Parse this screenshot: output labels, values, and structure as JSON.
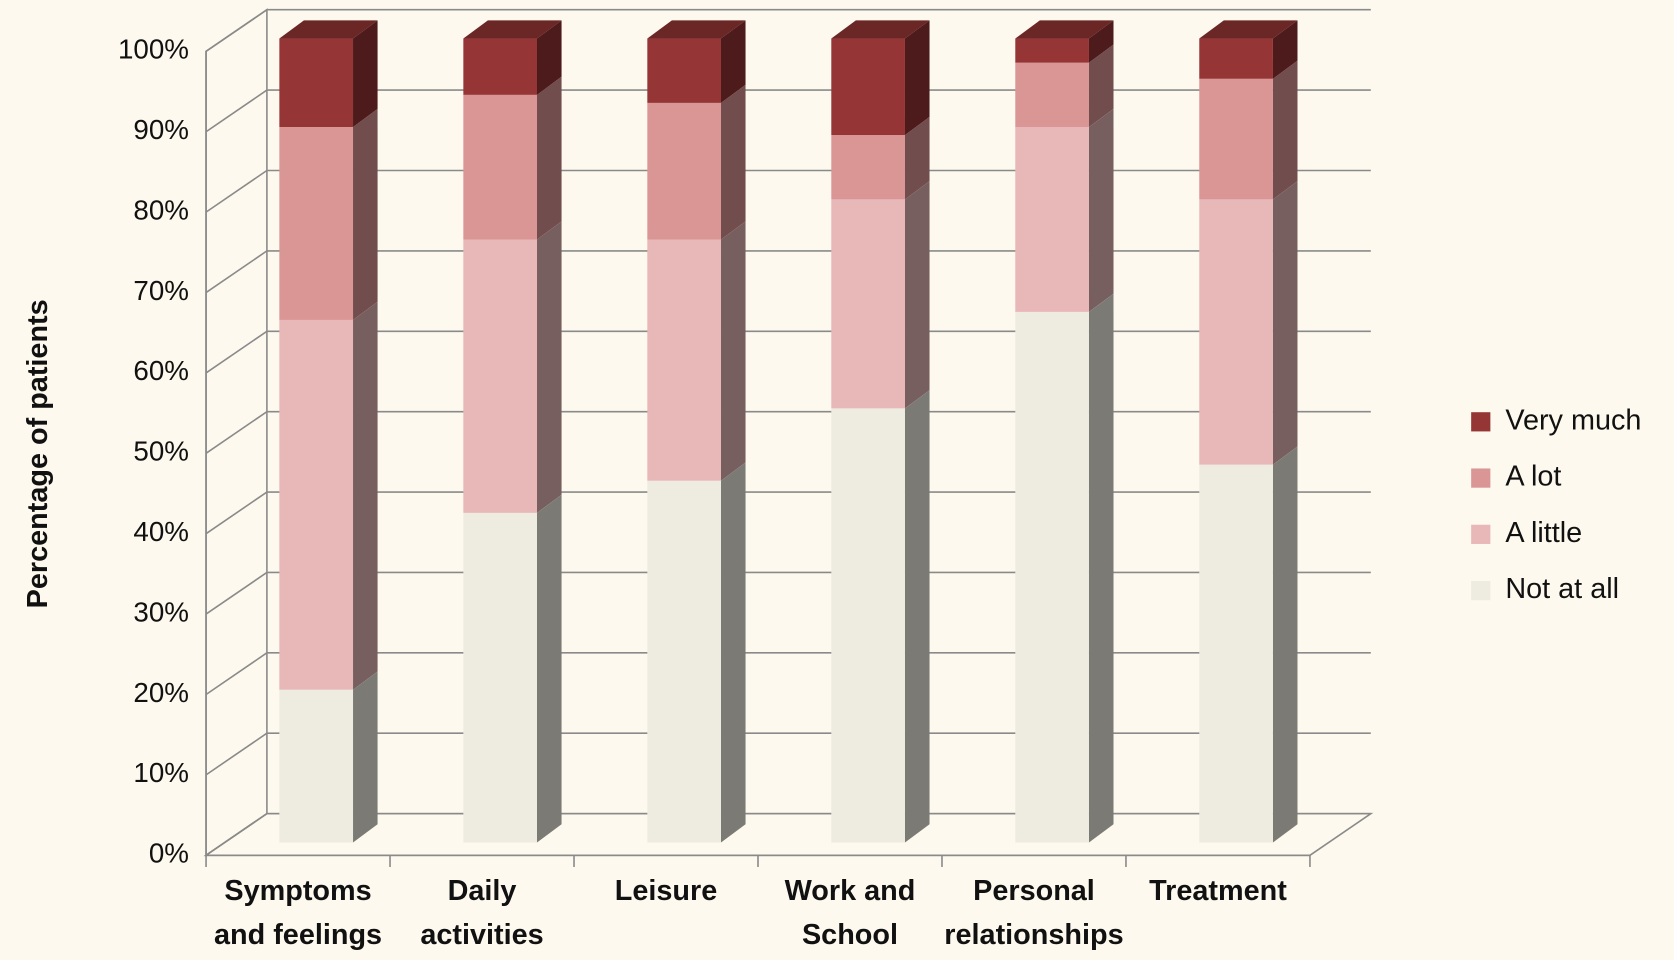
{
  "chart_data": {
    "type": "stacked-bar-3d",
    "y_label": "Percentage of patients",
    "categories": [
      "Symptoms\nand feelings",
      "Daily\nactivities",
      "Leisure",
      "Work and\nSchool",
      "Personal\nrelationships",
      "Treatment"
    ],
    "series": [
      {
        "name": "Not at all",
        "color": "#eeebe0",
        "values": [
          19,
          41,
          45,
          54,
          66,
          47
        ]
      },
      {
        "name": "A little",
        "color": "#e8b7b7",
        "values": [
          46,
          34,
          30,
          26,
          23,
          33
        ]
      },
      {
        "name": "A lot",
        "color": "#da9595",
        "values": [
          24,
          18,
          17,
          8,
          8,
          15
        ]
      },
      {
        "name": "Very much",
        "color": "#953535",
        "values": [
          11,
          7,
          8,
          12,
          3,
          5
        ]
      }
    ],
    "ylim": [
      0,
      100
    ],
    "yticks": [
      {
        "value": 0,
        "label": "0%"
      },
      {
        "value": 10,
        "label": "10%"
      },
      {
        "value": 20,
        "label": "20%"
      },
      {
        "value": 30,
        "label": "30%"
      },
      {
        "value": 40,
        "label": "40%"
      },
      {
        "value": 50,
        "label": "50%"
      },
      {
        "value": 60,
        "label": "60%"
      },
      {
        "value": 70,
        "label": "70%"
      },
      {
        "value": 80,
        "label": "80%"
      },
      {
        "value": 90,
        "label": "90%"
      },
      {
        "value": 100,
        "label": "100%"
      }
    ],
    "grid": true,
    "legend": "right"
  }
}
